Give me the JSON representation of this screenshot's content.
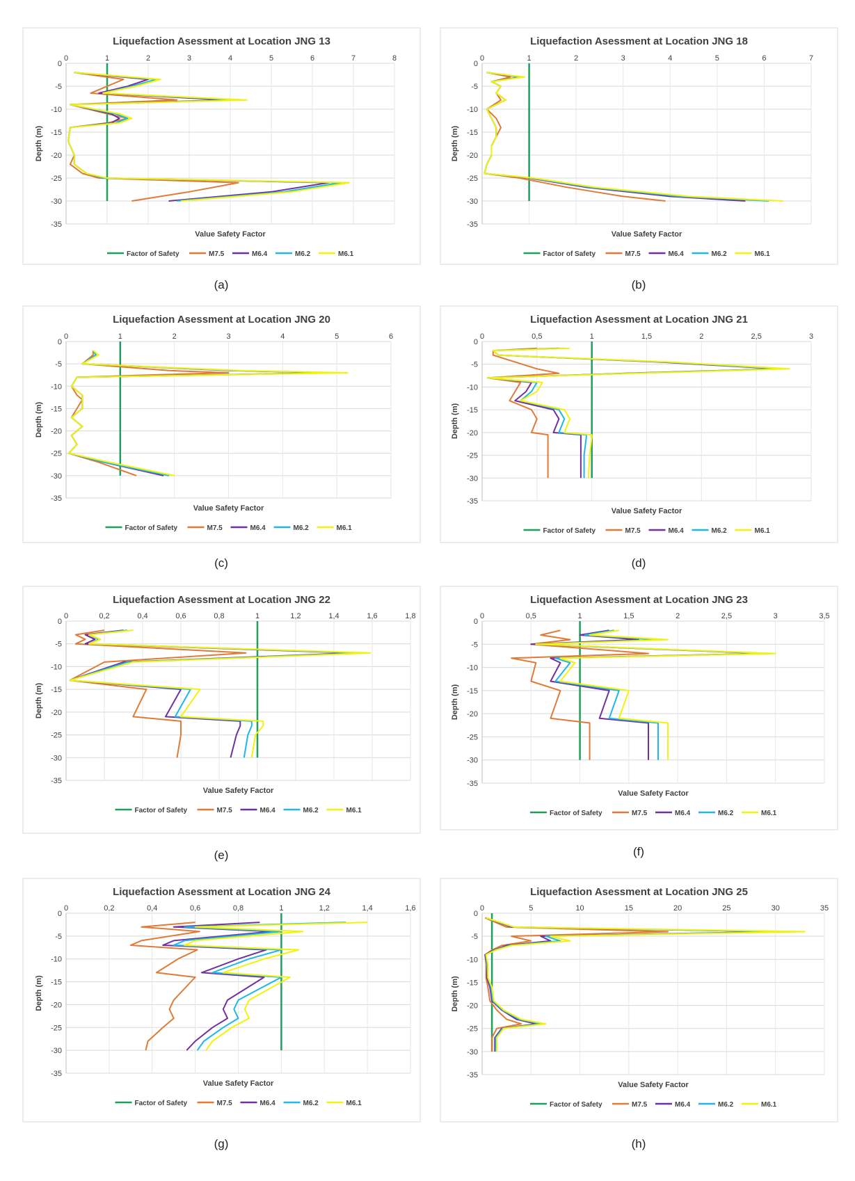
{
  "figure": {
    "legend_labels": [
      "Factor of Safety",
      "M7.5",
      "M6.4",
      "M6.2",
      "M6.1"
    ],
    "colors": {
      "fos": "#1ea05a",
      "m75": "#e07a36",
      "m64": "#7030a0",
      "m62": "#1fb6e8",
      "m61": "#f2f20c"
    },
    "panel_labels": [
      "(a)",
      "(b)",
      "(c)",
      "(d)",
      "(e)",
      "(f)",
      "(g)",
      "(h)"
    ]
  },
  "chart_data": [
    {
      "type": "line",
      "title": "Liquefaction Asessment at Location JNG 13",
      "xlabel": "Value Safety Factor",
      "ylabel": "Depth (m)",
      "xlim": [
        0,
        8
      ],
      "xticks": [
        "0",
        "1",
        "2",
        "3",
        "4",
        "5",
        "6",
        "7",
        "8"
      ],
      "ylim": [
        -35,
        0
      ],
      "yticks": [
        "0",
        "-5",
        "-10",
        "-15",
        "-20",
        "-25",
        "-30",
        "-35"
      ],
      "legend": "bottom",
      "depth": [
        -2,
        -3.5,
        -5,
        -6.5,
        -8,
        -9,
        -11,
        -12,
        -13,
        -14,
        -17,
        -20,
        -22,
        -24,
        -25,
        -26,
        -28,
        -30
      ],
      "series": [
        {
          "name": "Factor of Safety",
          "x": [
            1,
            1
          ]
        },
        {
          "name": "M7.5",
          "x": [
            0.2,
            1.4,
            1.0,
            0.6,
            2.7,
            0.1,
            1.0,
            1.5,
            1.0,
            0.1,
            0.05,
            0.2,
            0.1,
            0.4,
            0.8,
            4.2,
            3.0,
            1.6
          ]
        },
        {
          "name": "M6.4",
          "x": [
            0.2,
            2.0,
            1.5,
            0.8,
            3.9,
            0.1,
            1.1,
            1.3,
            1.1,
            0.1,
            0.05,
            0.2,
            0.2,
            0.5,
            0.9,
            6.4,
            5.0,
            2.5
          ]
        },
        {
          "name": "M6.2",
          "x": [
            0.2,
            2.2,
            1.6,
            0.9,
            4.2,
            0.1,
            1.2,
            1.5,
            1.2,
            0.1,
            0.05,
            0.2,
            0.2,
            0.5,
            0.9,
            6.7,
            5.3,
            2.7
          ]
        },
        {
          "name": "M6.1",
          "x": [
            0.2,
            2.3,
            1.7,
            0.9,
            4.4,
            0.1,
            1.3,
            1.6,
            1.3,
            0.1,
            0.05,
            0.2,
            0.2,
            0.5,
            1.0,
            6.9,
            5.5,
            2.8
          ]
        }
      ]
    },
    {
      "type": "line",
      "title": "Liquefaction Asessment at Location JNG 18",
      "xlabel": "Value Safety Factor",
      "ylabel": "Depth (m)",
      "xlim": [
        0,
        7
      ],
      "xticks": [
        "0",
        "1",
        "2",
        "3",
        "4",
        "5",
        "6",
        "7"
      ],
      "ylim": [
        -35,
        0
      ],
      "yticks": [
        "0",
        "-5",
        "-10",
        "-15",
        "-20",
        "-25",
        "-30",
        "-35"
      ],
      "legend": "bottom",
      "depth": [
        -2,
        -3,
        -4,
        -5,
        -6.5,
        -8,
        -10,
        -12,
        -14,
        -16,
        -18,
        -20,
        -22,
        -24,
        -25,
        -27,
        -29,
        -30
      ],
      "series": [
        {
          "name": "Factor of Safety",
          "x": [
            1,
            1
          ]
        },
        {
          "name": "M7.5",
          "x": [
            0.1,
            0.6,
            0.2,
            0.4,
            0.3,
            0.4,
            0.1,
            0.3,
            0.4,
            0.3,
            0.2,
            0.2,
            0.1,
            0.05,
            0.8,
            1.8,
            3.0,
            3.9
          ]
        },
        {
          "name": "M6.4",
          "x": [
            0.1,
            0.8,
            0.2,
            0.4,
            0.3,
            0.5,
            0.1,
            0.2,
            0.3,
            0.3,
            0.2,
            0.2,
            0.1,
            0.05,
            1.0,
            2.2,
            4.0,
            5.6
          ]
        },
        {
          "name": "M6.2",
          "x": [
            0.1,
            0.85,
            0.2,
            0.4,
            0.3,
            0.5,
            0.1,
            0.2,
            0.3,
            0.3,
            0.2,
            0.2,
            0.1,
            0.05,
            1.05,
            2.3,
            4.2,
            6.1
          ]
        },
        {
          "name": "M6.1",
          "x": [
            0.1,
            0.9,
            0.2,
            0.4,
            0.3,
            0.5,
            0.1,
            0.2,
            0.3,
            0.3,
            0.2,
            0.2,
            0.1,
            0.05,
            1.1,
            2.4,
            4.4,
            6.4
          ]
        }
      ]
    },
    {
      "type": "line",
      "title": "Liquefaction Asessment at Location JNG 20",
      "xlabel": "Value Safety Factor",
      "ylabel": "Depth (m)",
      "xlim": [
        0,
        6
      ],
      "xticks": [
        "0",
        "1",
        "2",
        "3",
        "4",
        "5",
        "6"
      ],
      "ylim": [
        -35,
        0
      ],
      "yticks": [
        "0",
        "-5",
        "-10",
        "-15",
        "-20",
        "-25",
        "-30",
        "-35"
      ],
      "legend": "bottom",
      "depth": [
        -2,
        -3,
        -5,
        -6.5,
        -7,
        -7.5,
        -8,
        -10,
        -12,
        -13,
        -15,
        -17,
        -19,
        -21,
        -23,
        -25,
        -27,
        -30
      ],
      "series": [
        {
          "name": "Factor of Safety",
          "x": [
            1,
            1
          ]
        },
        {
          "name": "M7.5",
          "x": [
            0.5,
            0.5,
            0.3,
            1.9,
            3.0,
            1.5,
            0.2,
            0.1,
            0.2,
            0.3,
            0.2,
            0.1,
            0.3,
            0.1,
            0.2,
            0.05,
            0.6,
            1.3
          ]
        },
        {
          "name": "M6.4",
          "x": [
            0.5,
            0.55,
            0.3,
            3.0,
            4.9,
            2.5,
            0.2,
            0.1,
            0.3,
            0.3,
            0.3,
            0.1,
            0.3,
            0.1,
            0.2,
            0.05,
            0.7,
            1.8
          ]
        },
        {
          "name": "M6.2",
          "x": [
            0.5,
            0.55,
            0.3,
            3.1,
            5.0,
            2.6,
            0.2,
            0.1,
            0.3,
            0.3,
            0.3,
            0.1,
            0.3,
            0.1,
            0.2,
            0.05,
            0.7,
            1.9
          ]
        },
        {
          "name": "M6.1",
          "x": [
            0.5,
            0.6,
            0.3,
            3.2,
            5.2,
            2.7,
            0.2,
            0.1,
            0.3,
            0.3,
            0.3,
            0.1,
            0.3,
            0.1,
            0.2,
            0.05,
            0.8,
            2.0
          ]
        }
      ]
    },
    {
      "type": "line",
      "title": "Liquefaction Asessment at Location JNG 21",
      "xlabel": "Value Safety Factor",
      "ylabel": "Depth (m)",
      "xlim": [
        0,
        3
      ],
      "xticks": [
        "0",
        "0,5",
        "1",
        "1,5",
        "2",
        "2,5",
        "3"
      ],
      "ylim": [
        -35,
        0
      ],
      "yticks": [
        "0",
        "-5",
        "-10",
        "-15",
        "-20",
        "-25",
        "-30",
        "-35"
      ],
      "legend": "bottom",
      "depth": [
        -1.5,
        -2,
        -3,
        -4.5,
        -6,
        -7,
        -8,
        -9,
        -11,
        -13,
        -15,
        -17,
        -20,
        -20.5,
        -21,
        -25,
        -30
      ],
      "series": [
        {
          "name": "Factor of Safety",
          "x": [
            1,
            1
          ]
        },
        {
          "name": "M7.5",
          "x": [
            0.5,
            0.1,
            0.1,
            0.3,
            0.5,
            0.7,
            0.05,
            0.35,
            0.3,
            0.25,
            0.45,
            0.5,
            0.45,
            0.6,
            0.6,
            0.6,
            0.6
          ]
        },
        {
          "name": "M6.4",
          "x": [
            0.7,
            0.1,
            0.15,
            1.6,
            2.7,
            1.3,
            0.05,
            0.45,
            0.4,
            0.3,
            0.65,
            0.7,
            0.65,
            0.9,
            0.9,
            0.9,
            0.9
          ]
        },
        {
          "name": "M6.2",
          "x": [
            0.75,
            0.1,
            0.15,
            1.65,
            2.75,
            1.35,
            0.05,
            0.5,
            0.45,
            0.35,
            0.7,
            0.75,
            0.7,
            0.95,
            0.95,
            0.93,
            0.93
          ]
        },
        {
          "name": "M6.1",
          "x": [
            0.8,
            0.1,
            0.15,
            1.7,
            2.8,
            1.4,
            0.05,
            0.55,
            0.5,
            0.35,
            0.75,
            0.8,
            0.75,
            1.0,
            1.0,
            0.98,
            0.97
          ]
        }
      ]
    },
    {
      "type": "line",
      "title": "Liquefaction Asessment at Location JNG 22",
      "xlabel": "Value Safety Factor",
      "ylabel": "Depth (m)",
      "xlim": [
        0,
        1.8
      ],
      "xticks": [
        "0",
        "0,2",
        "0,4",
        "0,6",
        "0,8",
        "1",
        "1,2",
        "1,4",
        "1,6",
        "1,8"
      ],
      "ylim": [
        -35,
        0
      ],
      "yticks": [
        "0",
        "-5",
        "-10",
        "-15",
        "-20",
        "-25",
        "-30",
        "-35"
      ],
      "legend": "bottom",
      "depth": [
        -2,
        -3,
        -4,
        -5,
        -7,
        -9,
        -13,
        -15,
        -21,
        -22,
        -23,
        -25,
        -30
      ],
      "series": [
        {
          "name": "Factor of Safety",
          "x": [
            1,
            1
          ]
        },
        {
          "name": "M7.5",
          "x": [
            0.2,
            0.05,
            0.1,
            0.05,
            0.94,
            0.2,
            0.02,
            0.42,
            0.35,
            0.6,
            0.6,
            0.6,
            0.58
          ]
        },
        {
          "name": "M6.4",
          "x": [
            0.3,
            0.1,
            0.15,
            0.1,
            1.5,
            0.3,
            0.02,
            0.6,
            0.52,
            0.91,
            0.91,
            0.89,
            0.86
          ]
        },
        {
          "name": "M6.2",
          "x": [
            0.32,
            0.12,
            0.17,
            0.12,
            1.55,
            0.32,
            0.02,
            0.65,
            0.57,
            0.97,
            0.97,
            0.95,
            0.93
          ]
        },
        {
          "name": "M6.1",
          "x": [
            0.35,
            0.12,
            0.18,
            0.12,
            1.59,
            0.35,
            0.02,
            0.7,
            0.6,
            1.03,
            1.03,
            0.99,
            0.97
          ]
        }
      ]
    },
    {
      "type": "line",
      "title": "Liquefaction Asessment at Location JNG 23",
      "xlabel": "Value Safety Factor",
      "ylabel": "Depth (m)",
      "xlim": [
        0,
        3.5
      ],
      "xticks": [
        "0",
        "0,5",
        "1",
        "1,5",
        "2",
        "2,5",
        "3",
        "3,5"
      ],
      "ylim": [
        -35,
        0
      ],
      "yticks": [
        "0",
        "-5",
        "-10",
        "-15",
        "-20",
        "-25",
        "-30",
        "-35"
      ],
      "legend": "bottom",
      "depth": [
        -2,
        -3,
        -4,
        -5,
        -7,
        -8,
        -9,
        -13,
        -15,
        -21,
        -22,
        -25,
        -30
      ],
      "series": [
        {
          "name": "Factor of Safety",
          "x": [
            1,
            1
          ]
        },
        {
          "name": "M7.5",
          "x": [
            0.8,
            0.6,
            0.9,
            0.5,
            1.7,
            0.3,
            0.55,
            0.5,
            0.8,
            0.7,
            1.1,
            1.1,
            1.1
          ]
        },
        {
          "name": "M6.4",
          "x": [
            1.3,
            1.0,
            1.6,
            0.5,
            2.9,
            0.7,
            0.8,
            0.7,
            1.3,
            1.2,
            1.7,
            1.7,
            1.7
          ]
        },
        {
          "name": "M6.2",
          "x": [
            1.35,
            1.05,
            1.8,
            0.55,
            2.95,
            0.75,
            0.9,
            0.75,
            1.4,
            1.3,
            1.8,
            1.8,
            1.8
          ]
        },
        {
          "name": "M6.1",
          "x": [
            1.4,
            1.1,
            1.9,
            0.55,
            3.0,
            0.8,
            0.95,
            0.8,
            1.5,
            1.4,
            1.9,
            1.9,
            1.9
          ]
        }
      ]
    },
    {
      "type": "line",
      "title": "Liquefaction Asessment at Location JNG 24",
      "xlabel": "Value Safety Factor",
      "ylabel": "Depth (m)",
      "xlim": [
        0,
        1.6
      ],
      "xticks": [
        "0",
        "0,2",
        "0,4",
        "0,6",
        "0,8",
        "1",
        "1,2",
        "1,4",
        "1,6"
      ],
      "ylim": [
        -35,
        0
      ],
      "yticks": [
        "0",
        "-5",
        "-10",
        "-15",
        "-20",
        "-25",
        "-30",
        "-35"
      ],
      "legend": "bottom",
      "depth": [
        -2,
        -3,
        -4,
        -6,
        -7,
        -8,
        -10,
        -13,
        -14,
        -19,
        -21,
        -23,
        -25,
        -28,
        -30
      ],
      "series": [
        {
          "name": "Factor of Safety",
          "x": [
            1,
            1
          ]
        },
        {
          "name": "M7.5",
          "x": [
            0.6,
            0.35,
            0.62,
            0.35,
            0.3,
            0.61,
            0.52,
            0.42,
            0.6,
            0.5,
            0.48,
            0.5,
            0.45,
            0.38,
            0.37
          ]
        },
        {
          "name": "M6.4",
          "x": [
            0.9,
            0.5,
            0.95,
            0.5,
            0.45,
            0.93,
            0.8,
            0.63,
            0.92,
            0.75,
            0.73,
            0.75,
            0.68,
            0.6,
            0.56
          ]
        },
        {
          "name": "M6.2",
          "x": [
            1.3,
            0.55,
            1.0,
            0.55,
            0.5,
            1.0,
            0.85,
            0.68,
            1.0,
            0.8,
            0.78,
            0.8,
            0.73,
            0.64,
            0.61
          ]
        },
        {
          "name": "M6.1",
          "x": [
            1.4,
            0.6,
            1.1,
            0.6,
            0.55,
            1.08,
            0.92,
            0.73,
            1.04,
            0.85,
            0.83,
            0.85,
            0.77,
            0.68,
            0.65
          ]
        }
      ]
    },
    {
      "type": "line",
      "title": "Liquefaction Asessment at Location JNG 25",
      "xlabel": "Value Safety Factor",
      "ylabel": "Depth (m)",
      "xlim": [
        0,
        35
      ],
      "xticks": [
        "0",
        "5",
        "10",
        "15",
        "20",
        "25",
        "30",
        "35"
      ],
      "ylim": [
        -35,
        0
      ],
      "yticks": [
        "0",
        "-5",
        "-10",
        "-15",
        "-20",
        "-25",
        "-30",
        "-35"
      ],
      "legend": "bottom",
      "depth": [
        -1,
        -3,
        -4,
        -5,
        -6,
        -7,
        -8,
        -9,
        -11,
        -14,
        -16,
        -19,
        -21,
        -23,
        -24,
        -25,
        -27,
        -30
      ],
      "series": [
        {
          "name": "Factor of Safety",
          "x": [
            1,
            1
          ]
        },
        {
          "name": "M7.5",
          "x": [
            0.3,
            2.5,
            19.0,
            3.0,
            5.0,
            2.0,
            1.0,
            0.3,
            0.4,
            0.4,
            0.6,
            0.8,
            1.5,
            2.5,
            4.0,
            1.5,
            1.0,
            1.0
          ]
        },
        {
          "name": "M6.4",
          "x": [
            0.4,
            3.0,
            30.0,
            6.0,
            7.0,
            2.5,
            1.2,
            0.3,
            0.5,
            0.5,
            0.8,
            1.0,
            2.0,
            3.5,
            5.5,
            2.0,
            1.3,
            1.3
          ]
        },
        {
          "name": "M6.2",
          "x": [
            0.4,
            3.2,
            31.0,
            6.5,
            8.0,
            2.8,
            1.3,
            0.4,
            0.5,
            0.6,
            0.9,
            1.1,
            2.1,
            3.8,
            6.0,
            2.1,
            1.4,
            1.4
          ]
        },
        {
          "name": "M6.1",
          "x": [
            0.4,
            3.3,
            33.0,
            7.0,
            9.0,
            3.0,
            1.4,
            0.4,
            0.6,
            0.6,
            1.0,
            1.2,
            2.2,
            4.0,
            6.5,
            2.2,
            1.5,
            1.5
          ]
        }
      ]
    }
  ]
}
